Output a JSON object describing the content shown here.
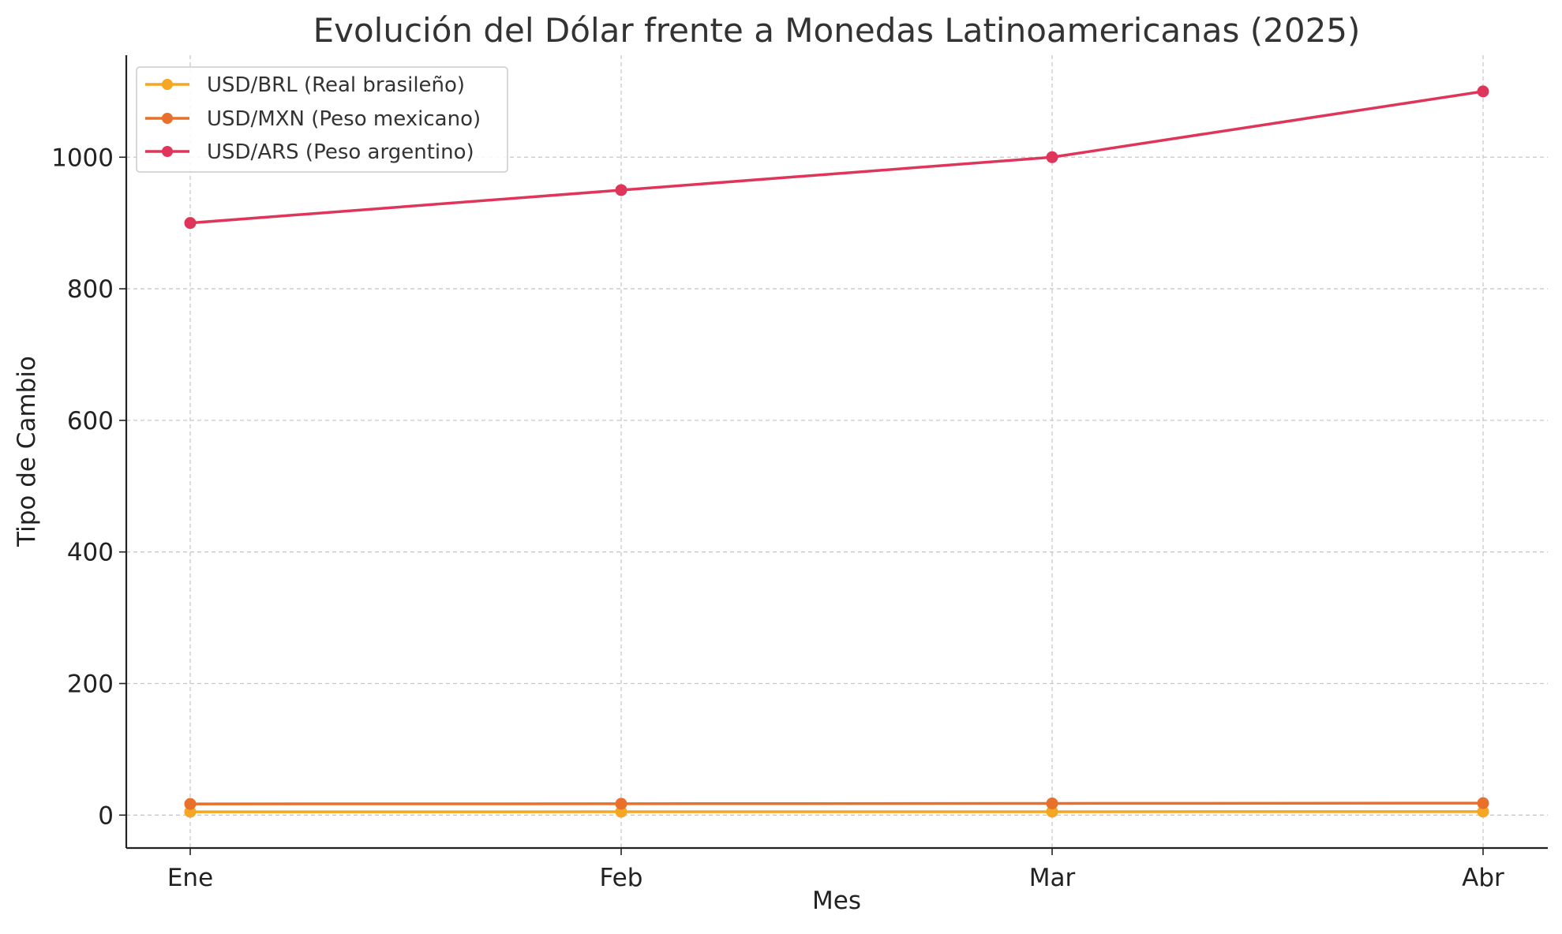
{
  "chart_data": {
    "type": "line",
    "title": "Evolución del Dólar frente a Monedas Latinoamericanas (2025)",
    "xlabel": "Mes",
    "ylabel": "Tipo de Cambio",
    "categories": [
      "Ene",
      "Feb",
      "Mar",
      "Abr"
    ],
    "ylim": [
      -50,
      1155
    ],
    "yticks": [
      0,
      200,
      400,
      600,
      800,
      1000
    ],
    "grid": true,
    "legend_position": "top-left",
    "series": [
      {
        "name": "USD/BRL (Real brasileño)",
        "color": "#f5a623",
        "values": [
          5.0,
          5.1,
          5.2,
          5.3
        ]
      },
      {
        "name": "USD/MXN (Peso mexicano)",
        "color": "#e8702a",
        "values": [
          17.0,
          17.3,
          17.8,
          18.2
        ]
      },
      {
        "name": "USD/ARS (Peso argentino)",
        "color": "#e0355a",
        "values": [
          900,
          950,
          1000,
          1100
        ]
      }
    ]
  }
}
